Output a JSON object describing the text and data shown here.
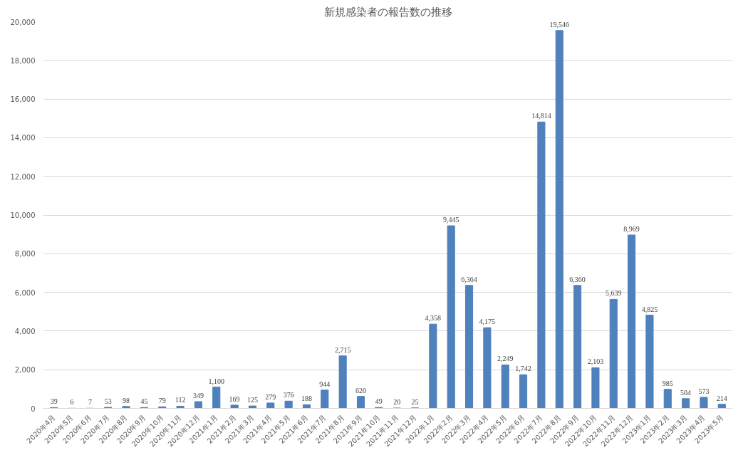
{
  "chart_data": {
    "type": "bar",
    "title": "新規感染者の報告数の推移",
    "categories": [
      "2020年4月",
      "2020年5月",
      "2020年6月",
      "2020年7月",
      "2020年8月",
      "2020年9月",
      "2020年10月",
      "2020年11月",
      "2020年12月",
      "2021年1月",
      "2021年2月",
      "2021年3月",
      "2021年4月",
      "2021年5月",
      "2021年6月",
      "2021年7月",
      "2021年8月",
      "2021年9月",
      "2021年10月",
      "2021年11月",
      "2021年12月",
      "2022年1月",
      "2022年2月",
      "2022年3月",
      "2022年4月",
      "2022年5月",
      "2022年6月",
      "2022年7月",
      "2022年8月",
      "2022年9月",
      "2022年10月",
      "2022年11月",
      "2022年12月",
      "2023年1月",
      "2023年2月",
      "2023年3月",
      "2023年4月",
      "2023年5月"
    ],
    "values": [
      39,
      6,
      7,
      53,
      98,
      45,
      79,
      112,
      349,
      1100,
      169,
      125,
      279,
      376,
      188,
      944,
      2715,
      620,
      49,
      20,
      25,
      4358,
      9445,
      6364,
      4175,
      2249,
      1742,
      14814,
      19546,
      6360,
      2103,
      5639,
      8969,
      4825,
      985,
      504,
      573,
      214
    ],
    "value_labels": [
      "39",
      "6",
      "7",
      "53",
      "98",
      "45",
      "79",
      "112",
      "349",
      "1,100",
      "169",
      "125",
      "279",
      "376",
      "188",
      "944",
      "2,715",
      "620",
      "49",
      "20",
      "25",
      "4,358",
      "9,445",
      "6,364",
      "4,175",
      "2,249",
      "1,742",
      "14,814",
      "19,546",
      "6,360",
      "2,103",
      "5,639",
      "8,969",
      "4,825",
      "985",
      "504",
      "573",
      "214"
    ],
    "color": "#4f81bd",
    "ylim": [
      0,
      20000
    ],
    "yticks": [
      {
        "value": 0,
        "label": "0"
      },
      {
        "value": 2000,
        "label": "2,000"
      },
      {
        "value": 4000,
        "label": "4,000"
      },
      {
        "value": 6000,
        "label": "6,000"
      },
      {
        "value": 8000,
        "label": "8,000"
      },
      {
        "value": 10000,
        "label": "10,000"
      },
      {
        "value": 12000,
        "label": "12,000"
      },
      {
        "value": 14000,
        "label": "14,000"
      },
      {
        "value": 16000,
        "label": "16,000"
      },
      {
        "value": 18000,
        "label": "18,000"
      },
      {
        "value": 20000,
        "label": "20,000"
      }
    ],
    "grid": "y"
  }
}
